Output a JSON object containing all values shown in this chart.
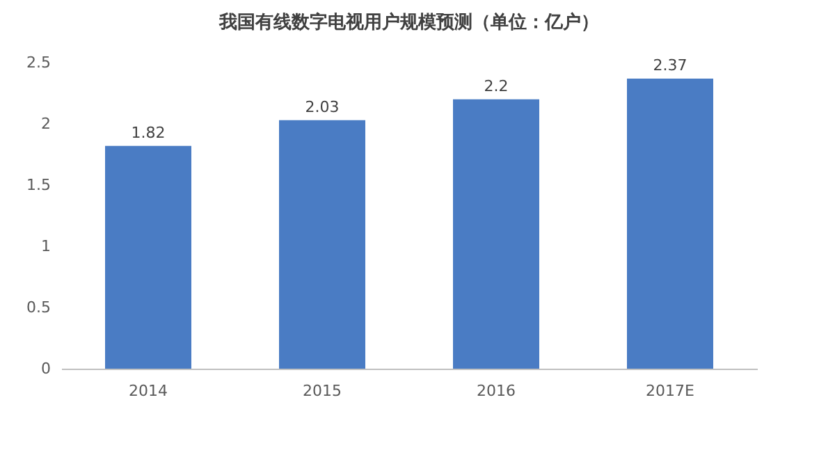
{
  "chart_data": {
    "type": "bar",
    "title": "我国有线数字电视用户规模预测（单位：亿户）",
    "categories": [
      "2014",
      "2015",
      "2016",
      "2017E"
    ],
    "values": [
      1.82,
      2.03,
      2.2,
      2.37
    ],
    "color": "#4a7cc4",
    "ylim": [
      0,
      2.5
    ],
    "yticks": [
      0,
      0.5,
      1,
      1.5,
      2,
      2.5
    ],
    "data_labels": true
  }
}
